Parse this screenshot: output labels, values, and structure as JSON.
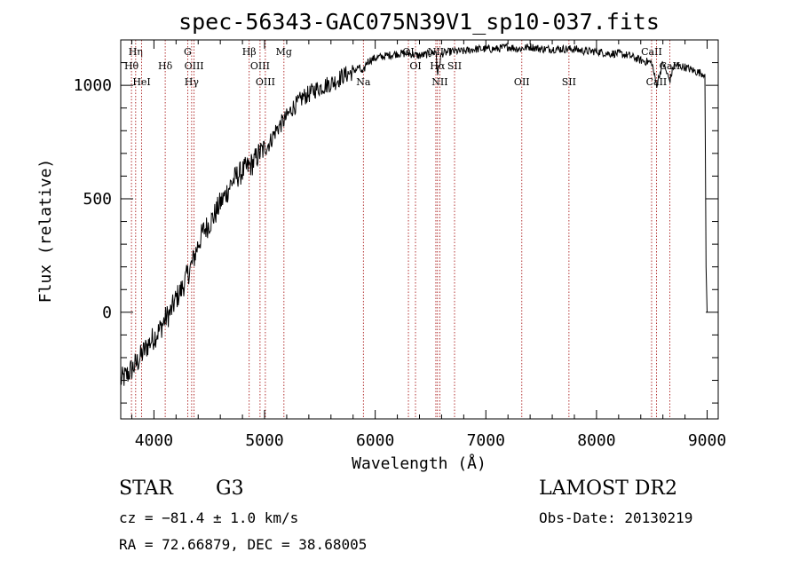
{
  "chart_data": {
    "type": "line",
    "title": "spec-56343-GAC075N39V1_sp10-037.fits",
    "xlabel": "Wavelength (Å)",
    "ylabel": "Flux (relative)",
    "xlim": [
      3700,
      9100
    ],
    "ylim": [
      -470,
      1200
    ],
    "x_ticks": [
      4000,
      5000,
      6000,
      7000,
      8000,
      9000
    ],
    "y_ticks": [
      0,
      500,
      1000
    ],
    "series": [
      {
        "x": [
          3700,
          3750,
          3800,
          3850,
          3900,
          3950,
          4000,
          4050,
          4100,
          4150,
          4200,
          4250,
          4300,
          4350,
          4400,
          4450,
          4500,
          4550,
          4600,
          4650,
          4700,
          4750,
          4800,
          4850,
          4900,
          4950,
          5000,
          5050,
          5100,
          5150,
          5200,
          5250,
          5300,
          5350,
          5400,
          5450,
          5500,
          5550,
          5600,
          5650,
          5700,
          5750,
          5800,
          5850,
          5890,
          5920,
          5950,
          6000,
          6100,
          6200,
          6300,
          6400,
          6500,
          6550,
          6563,
          6600,
          6700,
          6800,
          6900,
          7000,
          7100,
          7200,
          7300,
          7400,
          7500,
          7600,
          7700,
          7800,
          7900,
          8000,
          8100,
          8200,
          8300,
          8400,
          8500,
          8542,
          8600,
          8662,
          8700,
          8800,
          8900,
          8980,
          8990,
          9000
        ],
        "y": [
          -300,
          -280,
          -250,
          -220,
          -180,
          -140,
          -110,
          -80,
          -30,
          0,
          60,
          100,
          160,
          220,
          300,
          360,
          390,
          430,
          480,
          520,
          570,
          600,
          620,
          640,
          660,
          700,
          720,
          750,
          800,
          830,
          860,
          900,
          920,
          950,
          960,
          980,
          990,
          1000,
          1010,
          1020,
          1040,
          1050,
          1060,
          1080,
          1050,
          1100,
          1110,
          1120,
          1130,
          1140,
          1140,
          1130,
          1140,
          1150,
          1050,
          1140,
          1150,
          1150,
          1160,
          1160,
          1160,
          1170,
          1160,
          1170,
          1160,
          1160,
          1160,
          1160,
          1150,
          1150,
          1140,
          1140,
          1130,
          1110,
          1100,
          1000,
          1100,
          1020,
          1090,
          1080,
          1060,
          1050,
          200,
          0
        ]
      }
    ],
    "line_marks": [
      {
        "label": "Hη",
        "x": 3835,
        "row": 1
      },
      {
        "label": "Hθ",
        "x": 3797,
        "row": 2
      },
      {
        "label": "HeI",
        "x": 3889,
        "row": 3
      },
      {
        "label": "Hδ",
        "x": 4102,
        "row": 2
      },
      {
        "label": "G",
        "x": 4305,
        "row": 1
      },
      {
        "label": "OIII",
        "x": 4363,
        "row": 2
      },
      {
        "label": "Hγ",
        "x": 4341,
        "row": 3
      },
      {
        "label": "Hβ",
        "x": 4861,
        "row": 1
      },
      {
        "label": "OIII",
        "x": 4959,
        "row": 2
      },
      {
        "label": "OIII",
        "x": 5007,
        "row": 3
      },
      {
        "label": "Mg",
        "x": 5175,
        "row": 1
      },
      {
        "label": "Na",
        "x": 5893,
        "row": 3
      },
      {
        "label": "OI",
        "x": 6300,
        "row": 1
      },
      {
        "label": "OI",
        "x": 6364,
        "row": 2
      },
      {
        "label": "NII",
        "x": 6548,
        "row": 1
      },
      {
        "label": "Hα",
        "x": 6563,
        "row": 2
      },
      {
        "label": "NII",
        "x": 6584,
        "row": 3
      },
      {
        "label": "SII",
        "x": 6717,
        "row": 2
      },
      {
        "label": "OII",
        "x": 7325,
        "row": 3
      },
      {
        "label": "SII",
        "x": 7751,
        "row": 3
      },
      {
        "label": "CaII",
        "x": 8498,
        "row": 1
      },
      {
        "label": "CaII",
        "x": 8542,
        "row": 3
      },
      {
        "label": "CaII",
        "x": 8662,
        "row": 2
      }
    ]
  },
  "info": {
    "class_label": "STAR",
    "subclass": "G3",
    "survey": "LAMOST DR2",
    "cz": "cz = −81.4 ± 1.0 km/s",
    "obs_date": "Obs-Date: 20130219",
    "radec": "RA =  72.66879, DEC =  38.68005"
  }
}
